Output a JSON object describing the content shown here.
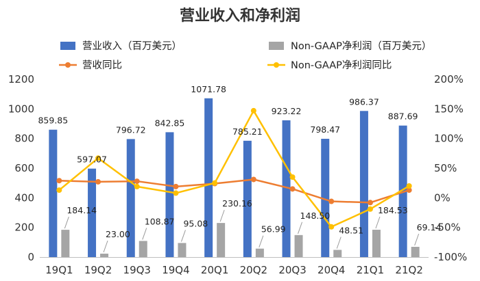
{
  "chart_data": {
    "type": "bar",
    "title": "营业收入和净利润",
    "categories": [
      "19Q1",
      "19Q2",
      "19Q3",
      "19Q4",
      "20Q1",
      "20Q2",
      "20Q3",
      "20Q4",
      "21Q1",
      "21Q2"
    ],
    "ylim": [
      0,
      1200
    ],
    "y_ticks": [
      "0",
      "200",
      "400",
      "600",
      "800",
      "1000",
      "1200"
    ],
    "y2lim": [
      -100,
      200
    ],
    "y2_ticks": [
      "-100%",
      "-50%",
      "0%",
      "50%",
      "100%",
      "150%",
      "200%"
    ],
    "grid": false,
    "legend_position": "top",
    "series": [
      {
        "name": "营业收入（百万美元）",
        "kind": "bar",
        "axis": "left",
        "color": "#4472C4",
        "values": [
          859.85,
          597.07,
          796.72,
          842.85,
          1071.78,
          785.21,
          923.22,
          798.47,
          986.37,
          887.69
        ],
        "labels": [
          "859.85",
          "597.07",
          "796.72",
          "842.85",
          "1071.78",
          "785.21",
          "923.22",
          "798.47",
          "986.37",
          "887.69"
        ]
      },
      {
        "name": "Non-GAAP净利润（百万美元）",
        "kind": "bar",
        "axis": "left",
        "color": "#A5A5A5",
        "values": [
          184.14,
          23.0,
          108.87,
          95.08,
          230.16,
          56.99,
          148.5,
          48.51,
          184.53,
          69.14
        ],
        "labels": [
          "184.14",
          "23.00",
          "108.87",
          "95.08",
          "230.16",
          "56.99",
          "148.50",
          "48.51",
          "184.53",
          "69.14"
        ]
      },
      {
        "name": "营收同比",
        "kind": "line",
        "axis": "right",
        "color": "#ED7D31",
        "values": [
          29,
          27,
          28,
          19,
          24,
          31,
          15,
          -6,
          -8,
          13
        ]
      },
      {
        "name": "Non-GAAP净利润同比",
        "kind": "line",
        "axis": "right",
        "color": "#FFC000",
        "values": [
          13,
          67,
          19,
          8,
          25,
          147,
          35,
          -49,
          -19,
          20
        ]
      }
    ]
  }
}
